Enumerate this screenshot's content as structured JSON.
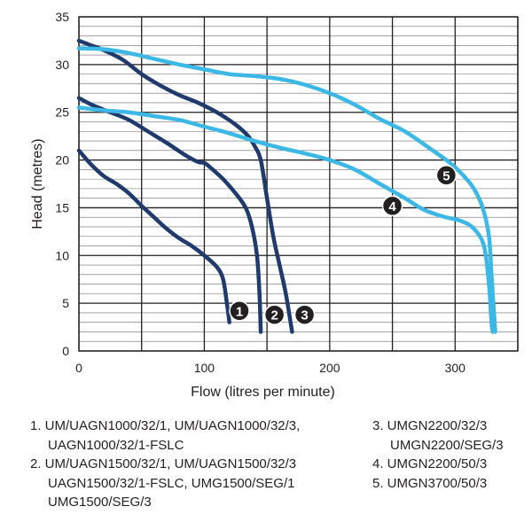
{
  "chart_data": {
    "type": "line",
    "xlabel": "Flow (litres per minute)",
    "ylabel": "Head (metres)",
    "xlim": [
      0,
      350
    ],
    "ylim": [
      0,
      35
    ],
    "x_ticks": [
      0,
      100,
      200,
      300
    ],
    "y_ticks": [
      0,
      5,
      10,
      15,
      20,
      25,
      30,
      35
    ],
    "grid": {
      "major_x_step": 50,
      "major_y_step": 5,
      "minor_y_step": 1
    },
    "colors": {
      "dark": "#1f3a6c",
      "light": "#3bb8e6",
      "grid": "#231f20",
      "marker": "#231f20"
    },
    "series": [
      {
        "id": "1",
        "color": "dark",
        "label_at": [
          128,
          4.2
        ],
        "points": [
          [
            0,
            21
          ],
          [
            10,
            19.5
          ],
          [
            20,
            18.3
          ],
          [
            30,
            17.5
          ],
          [
            40,
            16.5
          ],
          [
            50,
            15.2
          ],
          [
            60,
            14
          ],
          [
            70,
            12.8
          ],
          [
            80,
            11.8
          ],
          [
            90,
            11
          ],
          [
            100,
            10
          ],
          [
            110,
            8.8
          ],
          [
            115,
            7.5
          ],
          [
            118,
            5
          ],
          [
            120,
            3
          ]
        ]
      },
      {
        "id": "2",
        "color": "dark",
        "label_at": [
          156,
          3.8
        ],
        "points": [
          [
            0,
            26.5
          ],
          [
            10,
            25.8
          ],
          [
            25,
            25
          ],
          [
            40,
            24.2
          ],
          [
            55,
            23
          ],
          [
            70,
            21.8
          ],
          [
            85,
            20.5
          ],
          [
            95,
            19.8
          ],
          [
            100,
            19.7
          ],
          [
            105,
            19.2
          ],
          [
            115,
            18
          ],
          [
            125,
            16.5
          ],
          [
            133,
            15
          ],
          [
            138,
            13
          ],
          [
            142,
            10
          ],
          [
            144,
            6
          ],
          [
            145,
            2
          ]
        ]
      },
      {
        "id": "3",
        "color": "dark",
        "label_at": [
          180,
          3.8
        ],
        "points": [
          [
            0,
            32.5
          ],
          [
            10,
            32
          ],
          [
            20,
            31.5
          ],
          [
            35,
            30.5
          ],
          [
            50,
            29
          ],
          [
            65,
            27.8
          ],
          [
            80,
            26.8
          ],
          [
            95,
            26
          ],
          [
            110,
            25
          ],
          [
            125,
            23.7
          ],
          [
            135,
            22.5
          ],
          [
            140,
            21.5
          ],
          [
            145,
            20
          ],
          [
            150,
            16
          ],
          [
            155,
            12
          ],
          [
            160,
            9
          ],
          [
            165,
            6
          ],
          [
            170,
            2
          ]
        ]
      },
      {
        "id": "4",
        "color": "light",
        "label_at": [
          250,
          15.2
        ],
        "points": [
          [
            0,
            25.5
          ],
          [
            20,
            25.2
          ],
          [
            40,
            25
          ],
          [
            60,
            24.6
          ],
          [
            80,
            24.2
          ],
          [
            100,
            23.5
          ],
          [
            120,
            22.8
          ],
          [
            140,
            22
          ],
          [
            160,
            21.3
          ],
          [
            180,
            20.7
          ],
          [
            200,
            20
          ],
          [
            220,
            19
          ],
          [
            240,
            17.5
          ],
          [
            260,
            16
          ],
          [
            275,
            14.8
          ],
          [
            290,
            14.1
          ],
          [
            305,
            13.6
          ],
          [
            315,
            12.8
          ],
          [
            323,
            11
          ],
          [
            327,
            7
          ],
          [
            329,
            3
          ],
          [
            330,
            2
          ]
        ]
      },
      {
        "id": "5",
        "color": "light",
        "label_at": [
          293,
          18.4
        ],
        "points": [
          [
            0,
            31.7
          ],
          [
            20,
            31.6
          ],
          [
            40,
            31.2
          ],
          [
            60,
            30.6
          ],
          [
            80,
            30
          ],
          [
            100,
            29.5
          ],
          [
            120,
            29
          ],
          [
            140,
            28.8
          ],
          [
            160,
            28.5
          ],
          [
            180,
            27.9
          ],
          [
            200,
            27
          ],
          [
            220,
            25.8
          ],
          [
            240,
            24.3
          ],
          [
            260,
            23
          ],
          [
            280,
            21.2
          ],
          [
            295,
            19.8
          ],
          [
            305,
            18.6
          ],
          [
            315,
            17
          ],
          [
            322,
            15
          ],
          [
            327,
            12
          ],
          [
            329,
            8
          ],
          [
            331,
            4
          ],
          [
            332,
            2
          ]
        ]
      }
    ]
  },
  "legend": {
    "left": [
      "1. UM/UAGN1000/32/1, UM/UAGN1000/32/3,",
      "UAGN1000/32/1-FSLC",
      "2. UM/UAGN1500/32/1, UM/UAGN1500/32/3",
      "UAGN1500/32/1-FSLC, UMG1500/SEG/1",
      "UMG1500/SEG/3"
    ],
    "right": [
      "3. UMGN2200/32/3",
      "UMGN2200/SEG/3",
      "4. UMGN2200/50/3",
      "5. UMGN3700/50/3"
    ]
  }
}
